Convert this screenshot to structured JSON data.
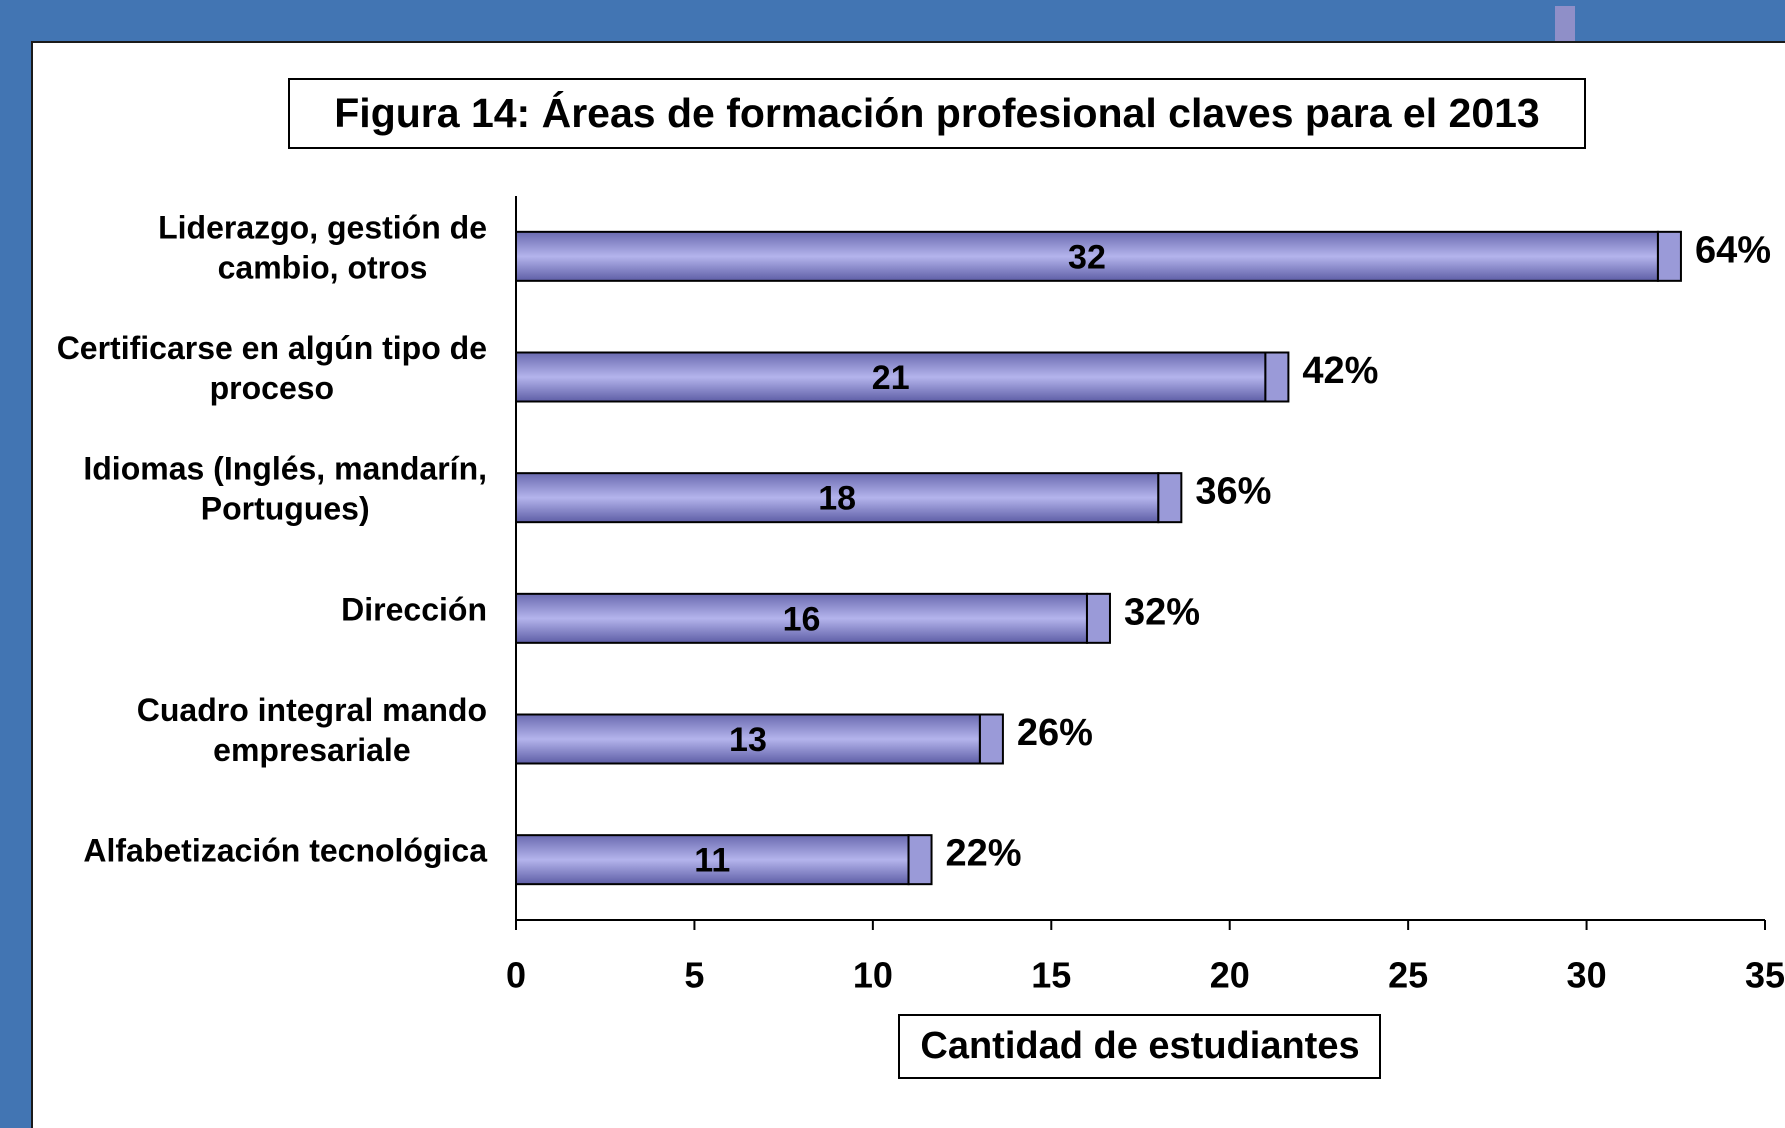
{
  "chart_data": {
    "type": "barh",
    "title": "Figura 14: Áreas de formación profesional claves para el 2013",
    "xlabel": "Cantidad de estudiantes",
    "categories": [
      "Liderazgo, gestión de\ncambio, otros",
      "Certificarse en algún tipo de\nproceso",
      "Idiomas (Inglés, mandarín,\nPortugues)",
      "Dirección",
      "Cuadro integral mando\nempresariale",
      "Alfabetización tecnológica"
    ],
    "values": [
      32,
      21,
      18,
      16,
      13,
      11
    ],
    "share_labels": [
      "64%",
      "42%",
      "36%",
      "32%",
      "26%",
      "22%"
    ],
    "color": "#9a9ad8",
    "xlim": [
      0,
      35
    ],
    "xticks": [
      0,
      5,
      10,
      15,
      20,
      25,
      30,
      35
    ]
  }
}
